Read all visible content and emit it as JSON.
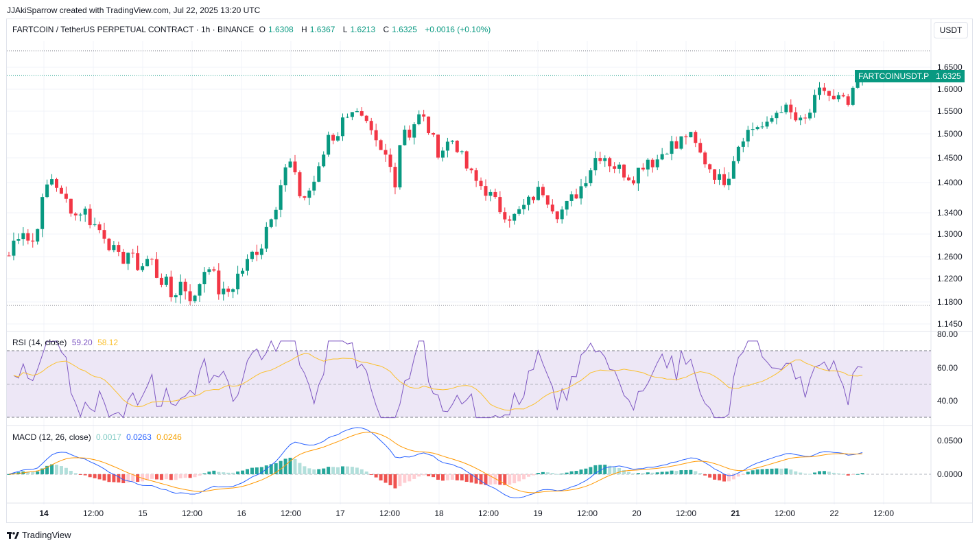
{
  "caption": "JJAkiSparrow created with TradingView.com, Jul 22, 2025 13:20 UTC",
  "legend": {
    "symbol": "FARTCOIN / TetherUS PERPETUAL CONTRACT · 1h · BINANCE",
    "o_label": "O",
    "o": "1.6308",
    "h_label": "H",
    "h": "1.6367",
    "l_label": "L",
    "l": "1.6213",
    "c_label": "C",
    "c": "1.6325",
    "change": "+0.0016 (+0.10%)"
  },
  "currency_button": "USDT",
  "price_tag": {
    "symbol": "FARTCOINUSDT.P",
    "price": "1.6325"
  },
  "price_axis": [
    "1.6500",
    "1.6000",
    "1.5500",
    "1.5000",
    "1.4500",
    "1.4000",
    "1.3400",
    "1.3000",
    "1.2600",
    "1.2200",
    "1.1800",
    "1.1450"
  ],
  "rsi": {
    "title": "RSI (14, close)",
    "value": "59.20",
    "ma": "58.12",
    "axis": [
      "80.00",
      "60.00",
      "40.00"
    ],
    "colors": {
      "rsi": "#7e57c2",
      "ma": "#fdd835",
      "band": "#ede7f6"
    }
  },
  "macd": {
    "title": "MACD (12, 26, close)",
    "hist": "0.0017",
    "macd": "0.0263",
    "signal": "0.0246",
    "axis": [
      "0.0500",
      "0.0000"
    ],
    "colors": {
      "macd": "#2962ff",
      "signal": "#ff9800",
      "hist_up": "#26a69a",
      "hist_up_light": "#b2dfdb",
      "hist_down": "#ef5350",
      "hist_down_light": "#ffcdd2"
    }
  },
  "time_axis": [
    {
      "label": "14",
      "bold": true
    },
    {
      "label": "12:00",
      "bold": false
    },
    {
      "label": "15",
      "bold": false
    },
    {
      "label": "12:00",
      "bold": false
    },
    {
      "label": "16",
      "bold": false
    },
    {
      "label": "12:00",
      "bold": false
    },
    {
      "label": "17",
      "bold": false
    },
    {
      "label": "12:00",
      "bold": false
    },
    {
      "label": "18",
      "bold": false
    },
    {
      "label": "12:00",
      "bold": false
    },
    {
      "label": "19",
      "bold": false
    },
    {
      "label": "12:00",
      "bold": false
    },
    {
      "label": "20",
      "bold": false
    },
    {
      "label": "12:00",
      "bold": false
    },
    {
      "label": "21",
      "bold": true
    },
    {
      "label": "12:00",
      "bold": false
    },
    {
      "label": "22",
      "bold": false
    },
    {
      "label": "12:00",
      "bold": false
    }
  ],
  "brand": "TradingView",
  "colors": {
    "up": "#089981",
    "down": "#f23645",
    "grid": "#f0f3fa"
  },
  "chart_data": {
    "type": "candlestick",
    "timeframe": "1h",
    "close_path": [
      1.262,
      1.3,
      1.31,
      1.275,
      1.33,
      1.39,
      1.415,
      1.37,
      1.36,
      1.335,
      1.35,
      1.325,
      1.31,
      1.3,
      1.27,
      1.25,
      1.27,
      1.245,
      1.245,
      1.26,
      1.225,
      1.215,
      1.185,
      1.215,
      1.2,
      1.18,
      1.23,
      1.25,
      1.205,
      1.19,
      1.205,
      1.23,
      1.245,
      1.27,
      1.28,
      1.33,
      1.36,
      1.42,
      1.44,
      1.38,
      1.37,
      1.4,
      1.43,
      1.5,
      1.49,
      1.53,
      1.56,
      1.54,
      1.52,
      1.49,
      1.46,
      1.45,
      1.4,
      1.52,
      1.5,
      1.54,
      1.53,
      1.49,
      1.46,
      1.48,
      1.49,
      1.45,
      1.42,
      1.4,
      1.39,
      1.37,
      1.35,
      1.34,
      1.33,
      1.345,
      1.36,
      1.38,
      1.385,
      1.36,
      1.34,
      1.35,
      1.37,
      1.39,
      1.42,
      1.45,
      1.46,
      1.44,
      1.43,
      1.42,
      1.41,
      1.43,
      1.45,
      1.44,
      1.46,
      1.48,
      1.47,
      1.5,
      1.49,
      1.46,
      1.44,
      1.42,
      1.4,
      1.42,
      1.47,
      1.5,
      1.51,
      1.52,
      1.51,
      1.54,
      1.56,
      1.55,
      1.53,
      1.52,
      1.55,
      1.59,
      1.6,
      1.57,
      1.58,
      1.56,
      1.6,
      1.6325
    ]
  }
}
